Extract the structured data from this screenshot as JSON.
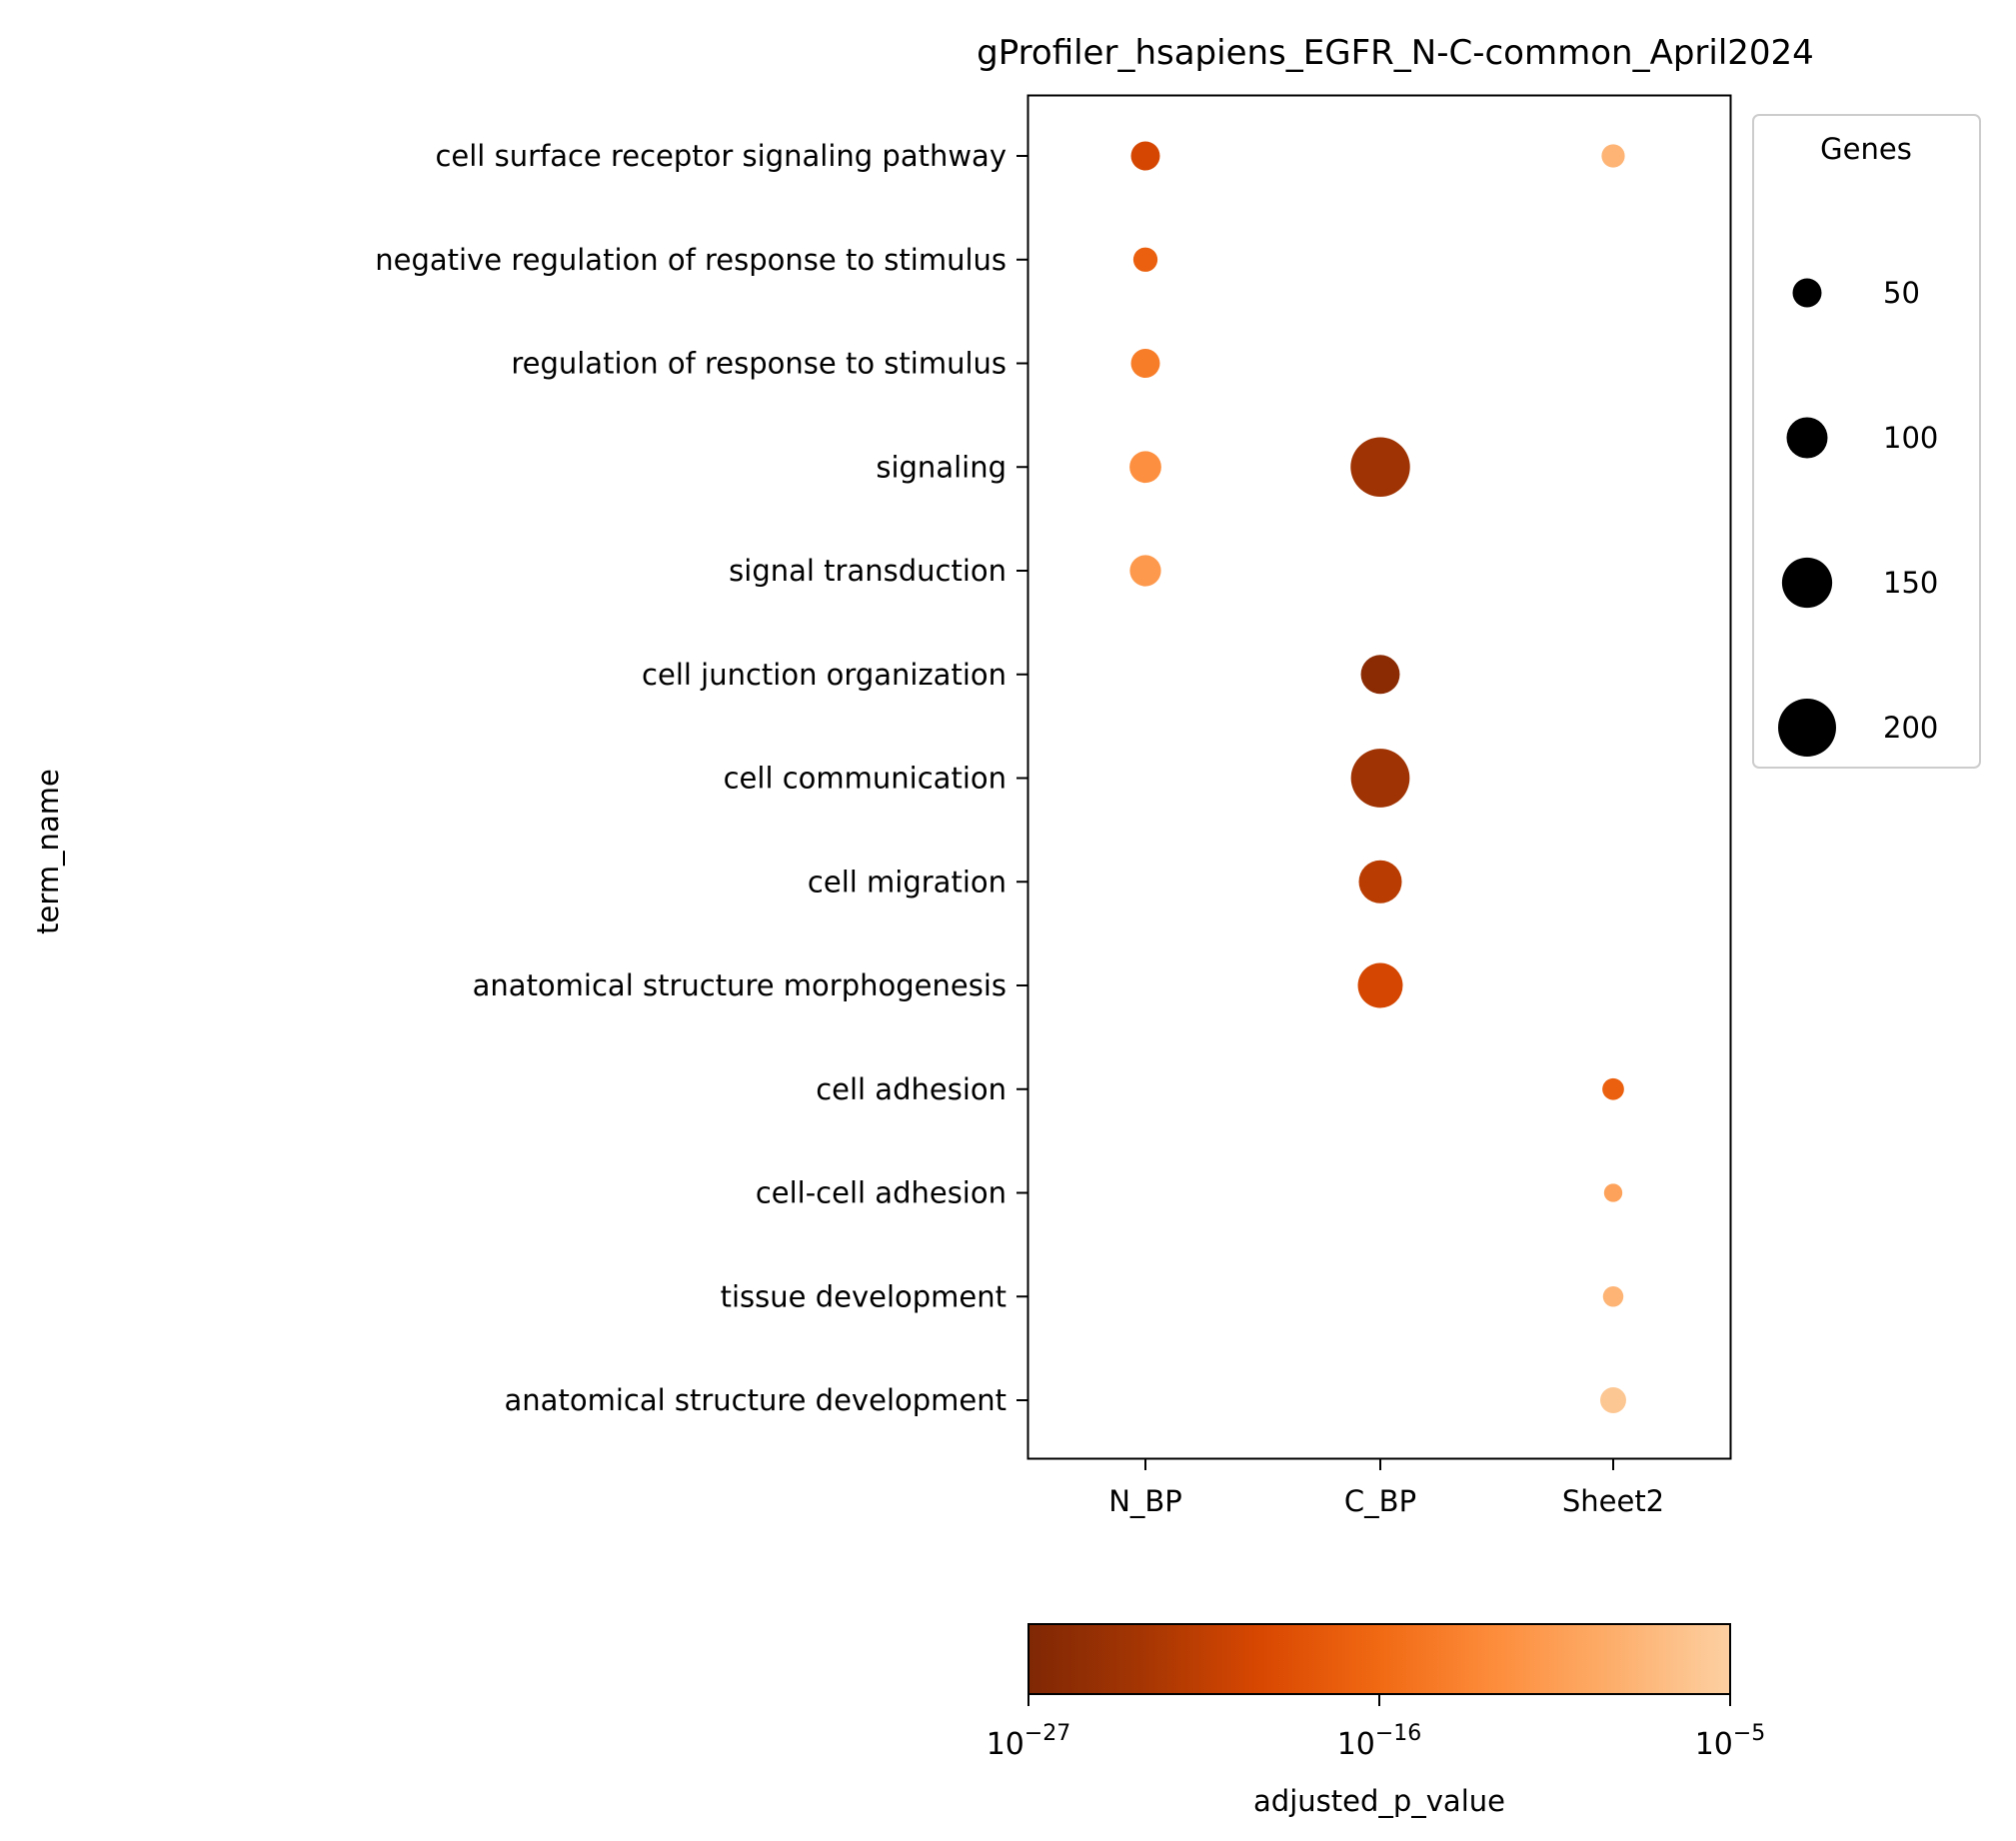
{
  "chart_data": {
    "type": "scatter",
    "title": "gProfiler_hsapiens_EGFR_N-C-common_April2024",
    "xlabel": "",
    "ylabel": "term_name",
    "categories_x": [
      "N_BP",
      "C_BP",
      "Sheet2"
    ],
    "categories_y": [
      "cell surface receptor signaling pathway",
      "negative regulation of response to stimulus",
      "regulation of response to stimulus",
      "signaling",
      "signal transduction",
      "cell junction organization",
      "cell communication",
      "cell migration",
      "anatomical structure morphogenesis",
      "cell adhesion",
      "cell-cell adhesion",
      "tissue development",
      "anatomical structure development"
    ],
    "points": [
      {
        "x": "N_BP",
        "y": "cell surface receptor signaling pathway",
        "genes": 50,
        "adjusted_p_value": 1e-20
      },
      {
        "x": "N_BP",
        "y": "negative regulation of response to stimulus",
        "genes": 35,
        "adjusted_p_value": 1e-17
      },
      {
        "x": "N_BP",
        "y": "regulation of response to stimulus",
        "genes": 50,
        "adjusted_p_value": 1e-14
      },
      {
        "x": "N_BP",
        "y": "signaling",
        "genes": 60,
        "adjusted_p_value": 1e-12
      },
      {
        "x": "N_BP",
        "y": "signal transduction",
        "genes": 58,
        "adjusted_p_value": 1e-11
      },
      {
        "x": "C_BP",
        "y": "signaling",
        "genes": 210,
        "adjusted_p_value": 1e-24
      },
      {
        "x": "C_BP",
        "y": "cell junction organization",
        "genes": 90,
        "adjusted_p_value": 1e-26
      },
      {
        "x": "C_BP",
        "y": "cell communication",
        "genes": 205,
        "adjusted_p_value": 1e-24
      },
      {
        "x": "C_BP",
        "y": "cell migration",
        "genes": 110,
        "adjusted_p_value": 1e-22
      },
      {
        "x": "C_BP",
        "y": "anatomical structure morphogenesis",
        "genes": 120,
        "adjusted_p_value": 1e-20
      },
      {
        "x": "Sheet2",
        "y": "cell surface receptor signaling pathway",
        "genes": 32,
        "adjusted_p_value": 1e-08
      },
      {
        "x": "Sheet2",
        "y": "cell adhesion",
        "genes": 28,
        "adjusted_p_value": 1e-17
      },
      {
        "x": "Sheet2",
        "y": "cell-cell adhesion",
        "genes": 20,
        "adjusted_p_value": 1e-10
      },
      {
        "x": "Sheet2",
        "y": "tissue development",
        "genes": 25,
        "adjusted_p_value": 1e-08
      },
      {
        "x": "Sheet2",
        "y": "anatomical structure development",
        "genes": 40,
        "adjusted_p_value": 1e-06
      }
    ],
    "size_legend": {
      "title": "Genes",
      "entries": [
        {
          "label": "50",
          "value": 50
        },
        {
          "label": "100",
          "value": 100
        },
        {
          "label": "150",
          "value": 150
        },
        {
          "label": "200",
          "value": 200
        }
      ],
      "placement": "right"
    },
    "colorbar": {
      "label": "adjusted_p_value",
      "scale": "log",
      "range": [
        1e-27,
        1e-05
      ],
      "ticks": [
        {
          "base": "10",
          "exp": "−27",
          "value": 1e-27
        },
        {
          "base": "10",
          "exp": "−16",
          "value": 1e-16
        },
        {
          "base": "10",
          "exp": "−5",
          "value": 1e-05
        }
      ],
      "placement": "bottom",
      "colormap": [
        "#7f2704",
        "#a63603",
        "#d94801",
        "#f16913",
        "#fd8d3c",
        "#fdae6b",
        "#fdd0a2"
      ]
    },
    "grid": false
  }
}
